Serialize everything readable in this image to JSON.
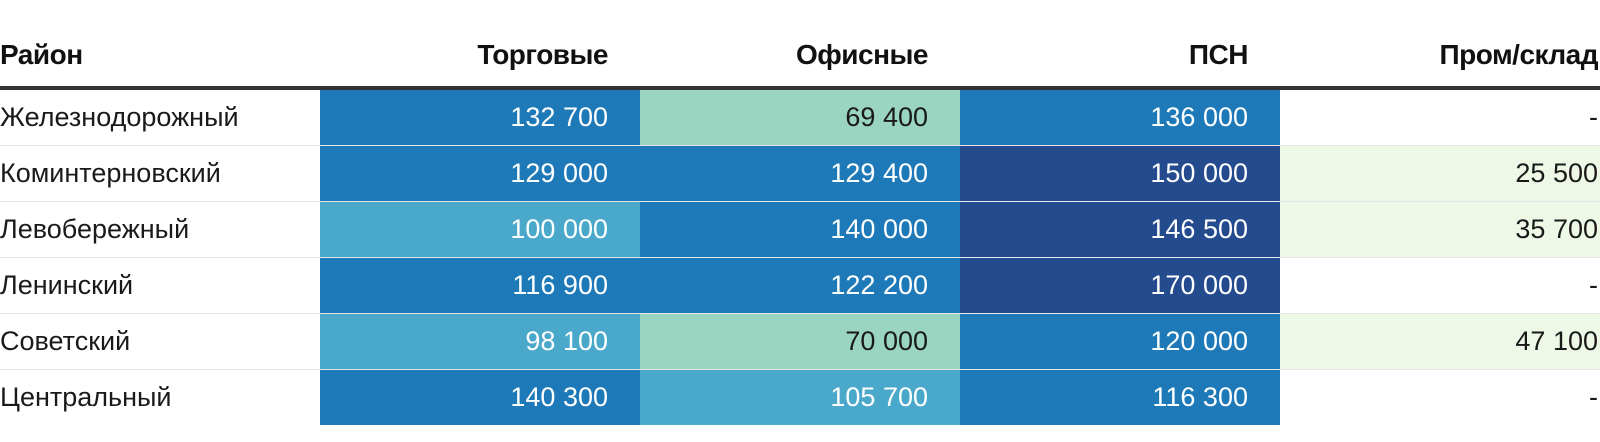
{
  "chart_data": {
    "type": "table",
    "row_header": "Район",
    "columns": [
      "Торговые",
      "Офисные",
      "ПСН",
      "Пром/склад"
    ],
    "rows": [
      {
        "name": "Железнодорожный",
        "values": [
          "132 700",
          "69 400",
          "136 000",
          "-"
        ]
      },
      {
        "name": "Коминтерновский",
        "values": [
          "129 000",
          "129 400",
          "150 000",
          "25 500"
        ]
      },
      {
        "name": "Левобережный",
        "values": [
          "100 000",
          "140 000",
          "146 500",
          "35 700"
        ]
      },
      {
        "name": "Ленинский",
        "values": [
          "116 900",
          "122 200",
          "170 000",
          "-"
        ]
      },
      {
        "name": "Советский",
        "values": [
          "98 100",
          "70 000",
          "120 000",
          "47 100"
        ]
      },
      {
        "name": "Центральный",
        "values": [
          "140 300",
          "105 700",
          "116 300",
          "-"
        ]
      }
    ],
    "color_scale": {
      "no_value": "#ffffff",
      "bins": [
        {
          "max": 60000,
          "color": "#eef8e6",
          "text": "#1a1a1a"
        },
        {
          "max": 90000,
          "color": "#99d5c0",
          "text": "#1a1a1a"
        },
        {
          "max": 112000,
          "color": "#4aa8cb",
          "text": "#ffffff"
        },
        {
          "max": 145000,
          "color": "#1e79b8",
          "text": "#ffffff"
        },
        {
          "max": 1000000,
          "color": "#244b8e",
          "text": "#ffffff"
        }
      ]
    }
  }
}
